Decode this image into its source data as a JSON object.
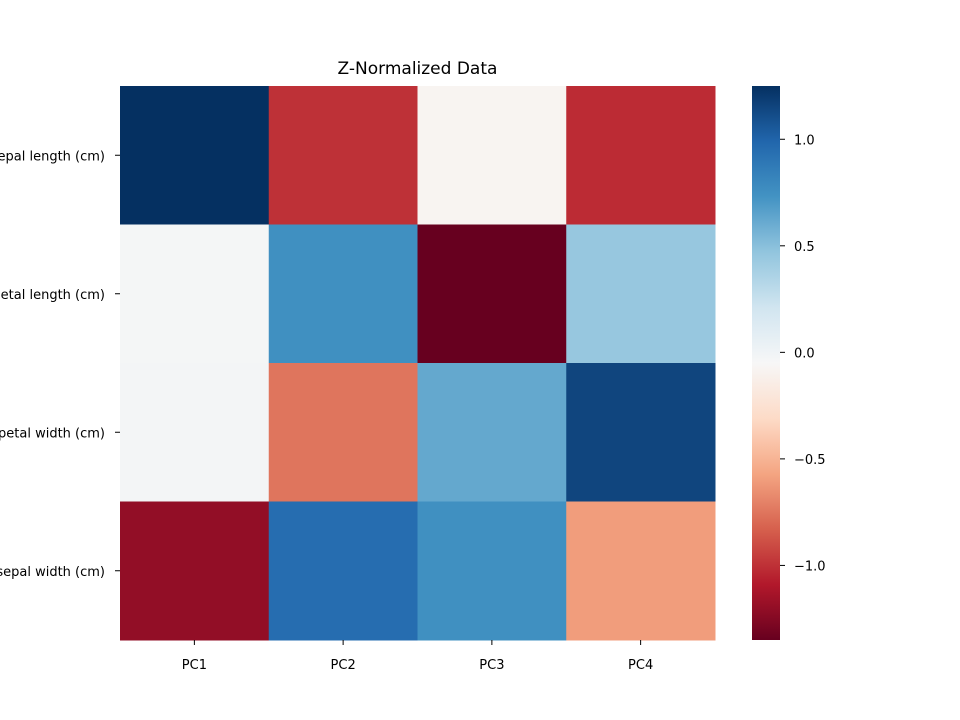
{
  "chart_data": {
    "type": "heatmap",
    "title": "Z-Normalized Data",
    "x_categories": [
      "PC1",
      "PC2",
      "PC3",
      "PC4"
    ],
    "y_categories": [
      "sepal length (cm)",
      "petal length (cm)",
      "petal width (cm)",
      "sepal width (cm)"
    ],
    "values": [
      [
        1.25,
        -1.0,
        -0.08,
        -1.02
      ],
      [
        -0.03,
        0.75,
        -1.35,
        0.45
      ],
      [
        -0.02,
        -0.75,
        0.62,
        1.15
      ],
      [
        -1.2,
        0.95,
        0.75,
        -0.6
      ]
    ],
    "vmin": -1.35,
    "vmax": 1.25,
    "colormap": "RdBu",
    "colorbar": {
      "ticks": [
        1.0,
        0.5,
        0.0,
        -0.5,
        -1.0
      ],
      "tick_labels": [
        "1.0",
        "0.5",
        "0.0",
        "−0.5",
        "−1.0"
      ]
    },
    "grid": false
  }
}
